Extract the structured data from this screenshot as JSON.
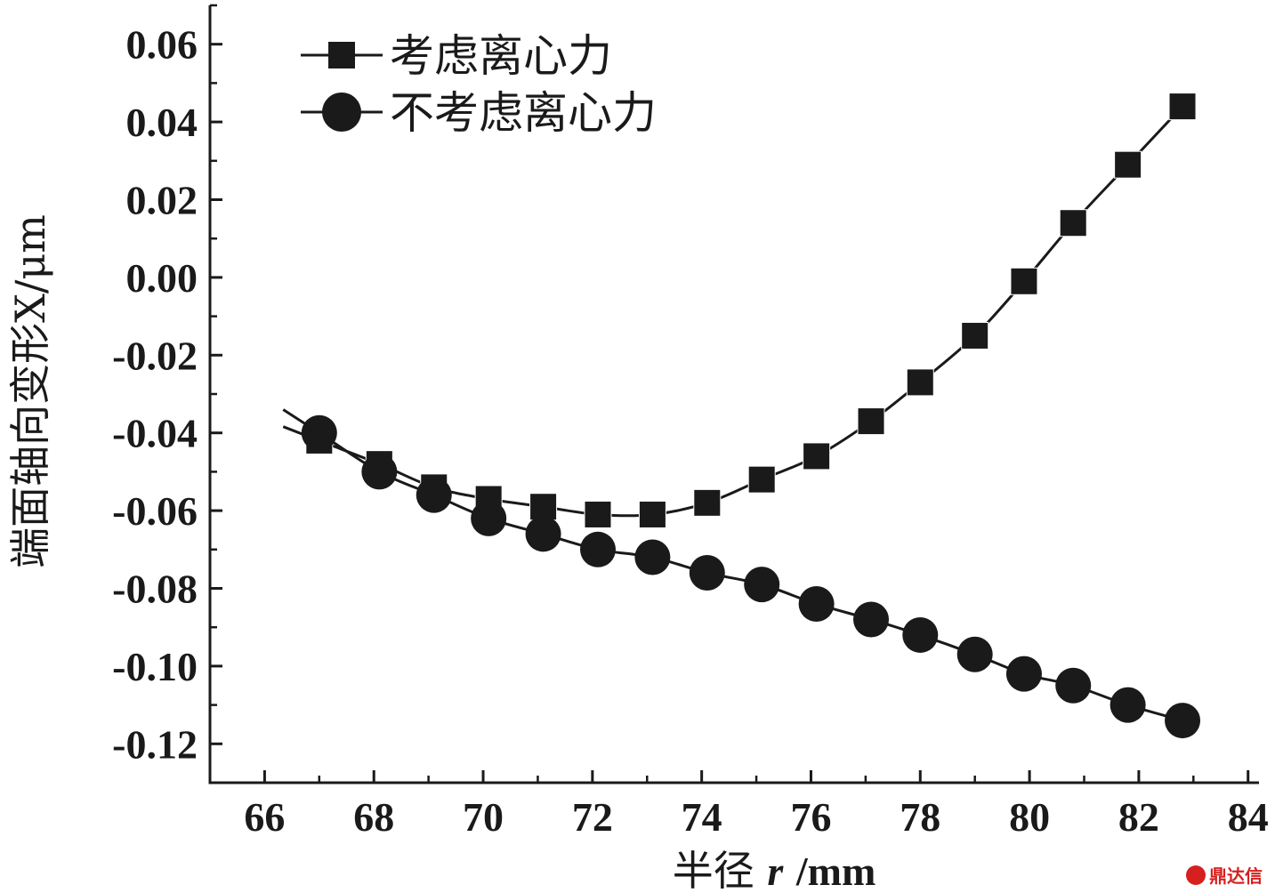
{
  "chart_data": {
    "type": "line",
    "xlabel": "半径 r/mm",
    "xlabel_main": "半径 ",
    "xlabel_var": "r",
    "xlabel_unit": "/mm",
    "ylabel": "端面轴向变形X/μm",
    "xlim": [
      65,
      84.2
    ],
    "ylim": [
      -0.13,
      0.07
    ],
    "x_ticks": [
      66,
      68,
      70,
      72,
      74,
      76,
      78,
      80,
      82,
      84
    ],
    "y_ticks": [
      -0.12,
      -0.1,
      -0.08,
      -0.06,
      -0.04,
      -0.02,
      0.0,
      0.02,
      0.04,
      0.06
    ],
    "y_tick_labels": [
      "-0.12",
      "-0.10",
      "-0.08",
      "-0.06",
      "-0.04",
      "-0.02",
      "0.00",
      "0.02",
      "0.04",
      "0.06"
    ],
    "legend_position": "top-left",
    "grid": false,
    "series": [
      {
        "name": "考虑离心力",
        "marker": "square",
        "color": "#1a1a1a",
        "x": [
          67.0,
          68.1,
          69.1,
          70.1,
          71.1,
          72.1,
          73.1,
          74.1,
          75.1,
          76.1,
          77.1,
          78.0,
          79.0,
          79.9,
          80.8,
          81.8,
          82.8
        ],
        "y": [
          -0.042,
          -0.048,
          -0.054,
          -0.057,
          -0.059,
          -0.061,
          -0.061,
          -0.058,
          -0.052,
          -0.046,
          -0.037,
          -0.027,
          -0.015,
          -0.001,
          0.014,
          0.029,
          0.044
        ]
      },
      {
        "name": "不考虑离心力",
        "marker": "circle",
        "color": "#1a1a1a",
        "x": [
          67.0,
          68.1,
          69.1,
          70.1,
          71.1,
          72.1,
          73.1,
          74.1,
          75.1,
          76.1,
          77.1,
          78.0,
          79.0,
          79.9,
          80.8,
          81.8,
          82.8
        ],
        "y": [
          -0.04,
          -0.05,
          -0.056,
          -0.062,
          -0.066,
          -0.07,
          -0.072,
          -0.076,
          -0.079,
          -0.084,
          -0.088,
          -0.092,
          -0.097,
          -0.102,
          -0.105,
          -0.11,
          -0.114
        ]
      }
    ]
  },
  "watermark": {
    "text": "鼎达信"
  }
}
